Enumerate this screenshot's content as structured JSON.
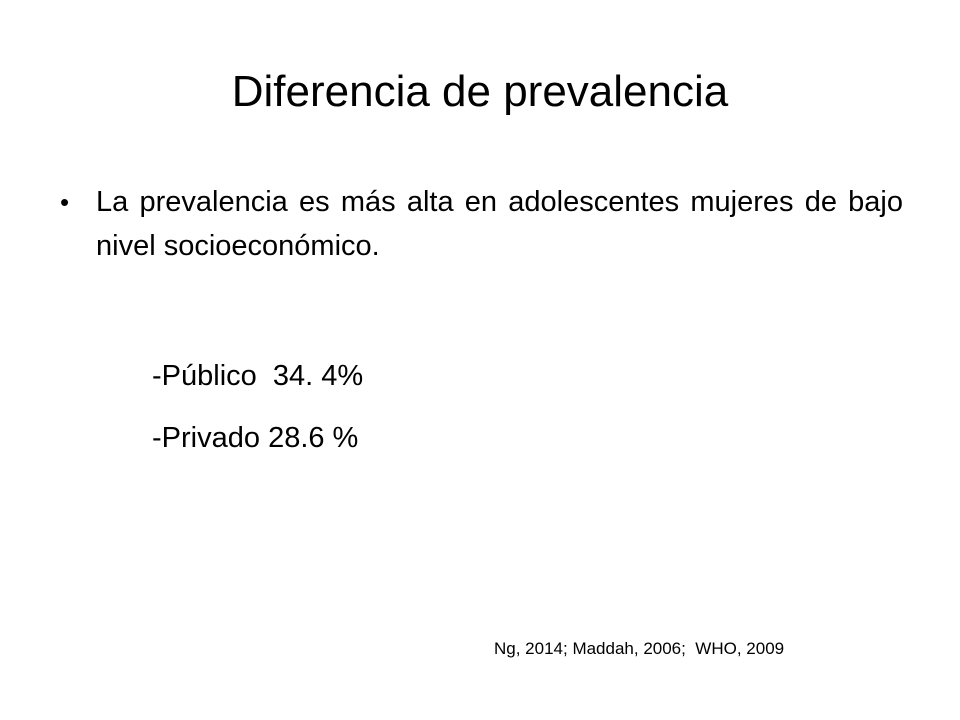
{
  "slide": {
    "title": "Diferencia de prevalencia",
    "bullet": {
      "marker": "•",
      "text": "La prevalencia es más alta en adolescentes mujeres de bajo nivel socioeconómico."
    },
    "lines": [
      {
        "label": "-Público",
        "value": "34. 4%"
      },
      {
        "label": "-Privado",
        "value": "28.6 %"
      }
    ],
    "citation": "Ng, 2014; Maddah, 2006;  WHO, 2009"
  }
}
